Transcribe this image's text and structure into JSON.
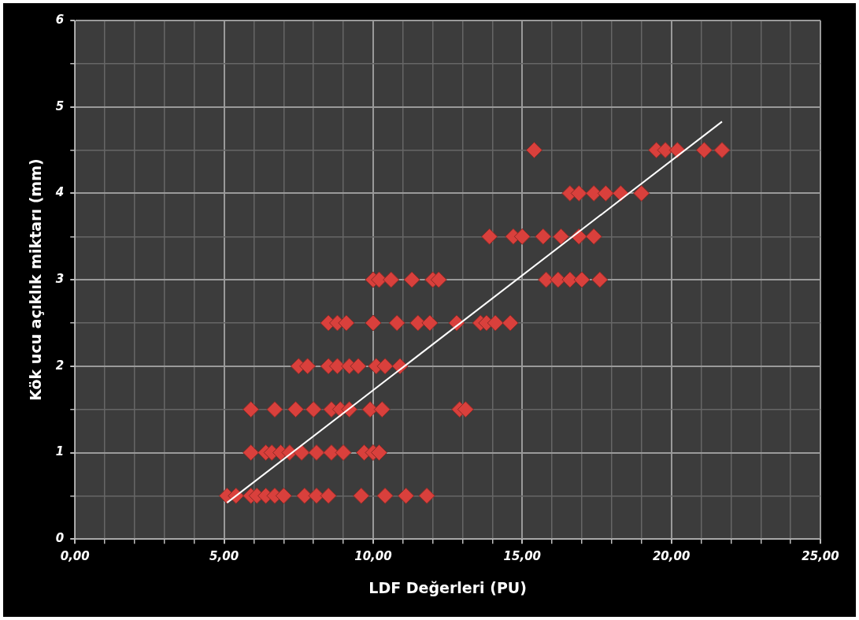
{
  "chart_data": {
    "type": "scatter",
    "xlabel": "LDF Değerleri (PU)",
    "ylabel": "Kök ucu açıklık miktarı (mm)",
    "xlim": [
      0,
      25
    ],
    "ylim": [
      0,
      6
    ],
    "xticks": [
      {
        "value": 0,
        "label": "0,00"
      },
      {
        "value": 1,
        "label": null
      },
      {
        "value": 2,
        "label": null
      },
      {
        "value": 3,
        "label": null
      },
      {
        "value": 4,
        "label": null
      },
      {
        "value": 5,
        "label": "5,00"
      },
      {
        "value": 6,
        "label": null
      },
      {
        "value": 7,
        "label": null
      },
      {
        "value": 8,
        "label": null
      },
      {
        "value": 9,
        "label": null
      },
      {
        "value": 10,
        "label": "10,00"
      },
      {
        "value": 11,
        "label": null
      },
      {
        "value": 12,
        "label": null
      },
      {
        "value": 13,
        "label": null
      },
      {
        "value": 14,
        "label": null
      },
      {
        "value": 15,
        "label": "15,00"
      },
      {
        "value": 16,
        "label": null
      },
      {
        "value": 17,
        "label": null
      },
      {
        "value": 18,
        "label": null
      },
      {
        "value": 19,
        "label": null
      },
      {
        "value": 20,
        "label": "20,00"
      },
      {
        "value": 21,
        "label": null
      },
      {
        "value": 22,
        "label": null
      },
      {
        "value": 23,
        "label": null
      },
      {
        "value": 24,
        "label": null
      },
      {
        "value": 25,
        "label": "25,00"
      }
    ],
    "yticks": [
      0,
      {
        "value": 0.5,
        "label": null
      },
      1,
      {
        "value": 1.5,
        "label": null
      },
      2,
      {
        "value": 2.5,
        "label": null
      },
      3,
      {
        "value": 3.5,
        "label": null
      },
      4,
      {
        "value": 4.5,
        "label": null
      },
      5,
      {
        "value": 5.5,
        "label": null
      },
      6
    ],
    "grid": true,
    "legend": false,
    "marker": "diamond",
    "series": [
      {
        "color": "#d9403c",
        "x": [
          5.1,
          5.4,
          5.9,
          6.1,
          6.4,
          6.7,
          7.0,
          7.7,
          8.1,
          8.5,
          9.6,
          10.4,
          11.1,
          11.8,
          5.9,
          6.4,
          6.6,
          6.9,
          7.2,
          7.6,
          8.1,
          8.6,
          9.0,
          9.7,
          10.0,
          10.2,
          5.9,
          6.7,
          7.4,
          8.0,
          8.6,
          8.9,
          9.2,
          9.9,
          10.3,
          12.9,
          13.1,
          7.5,
          7.8,
          8.5,
          8.8,
          9.2,
          9.5,
          10.1,
          10.4,
          10.9,
          8.5,
          8.8,
          9.1,
          10.0,
          10.8,
          11.5,
          11.9,
          12.8,
          13.6,
          13.8,
          14.1,
          14.6,
          10.0,
          10.2,
          10.6,
          11.3,
          12.0,
          12.2,
          15.8,
          16.2,
          16.6,
          17.0,
          17.6,
          13.9,
          14.7,
          15.0,
          15.7,
          16.3,
          16.9,
          17.4,
          16.6,
          16.9,
          17.4,
          17.8,
          18.3,
          19.0,
          15.4,
          19.5,
          19.8,
          20.2,
          21.1,
          21.7
        ],
        "values": [
          0.5,
          0.5,
          0.5,
          0.5,
          0.5,
          0.5,
          0.5,
          0.5,
          0.5,
          0.5,
          0.5,
          0.5,
          0.5,
          0.5,
          1,
          1,
          1,
          1,
          1,
          1,
          1,
          1,
          1,
          1,
          1,
          1,
          1.5,
          1.5,
          1.5,
          1.5,
          1.5,
          1.5,
          1.5,
          1.5,
          1.5,
          1.5,
          1.5,
          2,
          2,
          2,
          2,
          2,
          2,
          2,
          2,
          2,
          2.5,
          2.5,
          2.5,
          2.5,
          2.5,
          2.5,
          2.5,
          2.5,
          2.5,
          2.5,
          2.5,
          2.5,
          3,
          3,
          3,
          3,
          3,
          3,
          3,
          3,
          3,
          3,
          3,
          3.5,
          3.5,
          3.5,
          3.5,
          3.5,
          3.5,
          3.5,
          4,
          4,
          4,
          4,
          4,
          4,
          4.5,
          4.5,
          4.5,
          4.5,
          4.5,
          4.5
        ]
      },
      {
        "type": "line",
        "color": "#ffffff",
        "marker": "none",
        "line_style": "solid",
        "x": [
          5.1,
          21.7
        ],
        "values": [
          0.42,
          4.83
        ]
      }
    ]
  }
}
